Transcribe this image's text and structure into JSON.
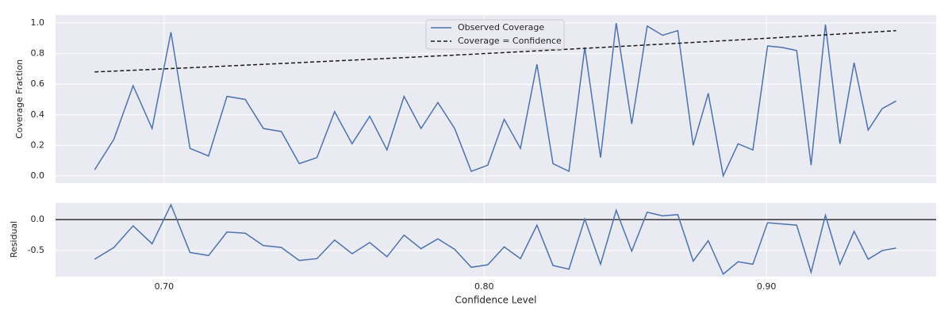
{
  "chart_data": [
    {
      "type": "line",
      "ylabel": "Coverage Fraction",
      "xscale": "log",
      "legend": "upper center",
      "grid": true,
      "xlim": [
        0.669,
        0.966
      ],
      "ylim": [
        -0.047,
        1.052
      ],
      "yticks": [
        {
          "value": 0,
          "label": "0.0"
        },
        {
          "value": 0.2,
          "label": "0.2"
        },
        {
          "value": 0.4,
          "label": "0.4"
        },
        {
          "value": 0.6,
          "label": "0.6"
        },
        {
          "value": 0.8,
          "label": "0.8"
        },
        {
          "value": 1.0,
          "label": "1.0"
        }
      ],
      "x": [
        0.68,
        0.6855,
        0.691,
        0.6965,
        0.702,
        0.7076,
        0.7131,
        0.7186,
        0.7241,
        0.7296,
        0.7351,
        0.7406,
        0.7461,
        0.7516,
        0.7571,
        0.7627,
        0.7682,
        0.7737,
        0.7792,
        0.7847,
        0.7902,
        0.7957,
        0.8012,
        0.8067,
        0.8122,
        0.8178,
        0.8233,
        0.8288,
        0.8343,
        0.8398,
        0.8453,
        0.8508,
        0.8563,
        0.8618,
        0.8673,
        0.8729,
        0.8784,
        0.8839,
        0.8894,
        0.8949,
        0.9004,
        0.9059,
        0.9114,
        0.9169,
        0.9224,
        0.928,
        0.9335,
        0.939,
        0.9445,
        0.95
      ],
      "series": [
        {
          "name": "Observed Coverage",
          "color": "#4c72b0",
          "linestyle": "solid",
          "values": [
            0.04,
            0.24,
            0.59,
            0.31,
            0.94,
            0.18,
            0.13,
            0.52,
            0.5,
            0.31,
            0.29,
            0.08,
            0.12,
            0.42,
            0.21,
            0.39,
            0.17,
            0.52,
            0.31,
            0.48,
            0.31,
            0.03,
            0.07,
            0.37,
            0.18,
            0.73,
            0.08,
            0.03,
            0.84,
            0.12,
            1.0,
            0.34,
            0.98,
            0.92,
            0.95,
            0.2,
            0.54,
            0.0,
            0.21,
            0.17,
            0.85,
            0.84,
            0.82,
            0.07,
            0.99,
            0.21,
            0.74,
            0.3,
            0.44,
            0.49
          ]
        },
        {
          "name": "Coverage = Confidence",
          "color": "#1a1a1a",
          "linestyle": "dashed",
          "values": [
            0.68,
            0.6855,
            0.691,
            0.6965,
            0.702,
            0.7076,
            0.7131,
            0.7186,
            0.7241,
            0.7296,
            0.7351,
            0.7406,
            0.7461,
            0.7516,
            0.7571,
            0.7627,
            0.7682,
            0.7737,
            0.7792,
            0.7847,
            0.7902,
            0.7957,
            0.8012,
            0.8067,
            0.8122,
            0.8178,
            0.8233,
            0.8288,
            0.8343,
            0.8398,
            0.8453,
            0.8508,
            0.8563,
            0.8618,
            0.8673,
            0.8729,
            0.8784,
            0.8839,
            0.8894,
            0.8949,
            0.9004,
            0.9059,
            0.9114,
            0.9169,
            0.9224,
            0.928,
            0.9335,
            0.939,
            0.9445,
            0.95
          ]
        }
      ]
    },
    {
      "type": "line",
      "xlabel": "Confidence Level",
      "ylabel": "Residual",
      "xscale": "log",
      "grid": true,
      "hline": 0,
      "hline_color": "#333333",
      "xlim": [
        0.669,
        0.966
      ],
      "ylim": [
        -0.92,
        0.27
      ],
      "xticks": [
        {
          "value": 0.7,
          "label": "0.70"
        },
        {
          "value": 0.8,
          "label": "0.80"
        },
        {
          "value": 0.9,
          "label": "0.90"
        }
      ],
      "yticks": [
        {
          "value": -0.5,
          "label": "-0.5"
        },
        {
          "value": 0,
          "label": "0.0"
        }
      ],
      "x": [
        0.68,
        0.6855,
        0.691,
        0.6965,
        0.702,
        0.7076,
        0.7131,
        0.7186,
        0.7241,
        0.7296,
        0.7351,
        0.7406,
        0.7461,
        0.7516,
        0.7571,
        0.7627,
        0.7682,
        0.7737,
        0.7792,
        0.7847,
        0.7902,
        0.7957,
        0.8012,
        0.8067,
        0.8122,
        0.8178,
        0.8233,
        0.8288,
        0.8343,
        0.8398,
        0.8453,
        0.8508,
        0.8563,
        0.8618,
        0.8673,
        0.8729,
        0.8784,
        0.8839,
        0.8894,
        0.8949,
        0.9004,
        0.9059,
        0.9114,
        0.9169,
        0.9224,
        0.928,
        0.9335,
        0.939,
        0.9445,
        0.95
      ],
      "series": [
        {
          "color": "#4c72b0",
          "linestyle": "solid",
          "values": [
            -0.64,
            -0.45,
            -0.1,
            -0.39,
            0.24,
            -0.53,
            -0.58,
            -0.2,
            -0.22,
            -0.42,
            -0.45,
            -0.66,
            -0.63,
            -0.33,
            -0.55,
            -0.37,
            -0.6,
            -0.25,
            -0.47,
            -0.31,
            -0.48,
            -0.77,
            -0.73,
            -0.44,
            -0.63,
            -0.09,
            -0.74,
            -0.8,
            0.01,
            -0.72,
            0.15,
            -0.51,
            0.12,
            0.06,
            0.08,
            -0.67,
            -0.34,
            -0.88,
            -0.68,
            -0.72,
            -0.05,
            -0.07,
            -0.09,
            -0.85,
            0.07,
            -0.72,
            -0.19,
            -0.64,
            -0.5,
            -0.46
          ]
        }
      ]
    }
  ]
}
